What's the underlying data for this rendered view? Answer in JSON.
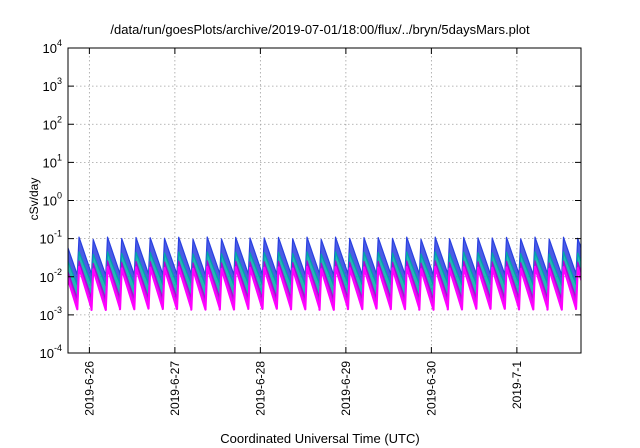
{
  "chart_data": {
    "type": "line",
    "title": "/data/run/goesPlots/archive/2019-07-01/18:00/flux/../bryn/5daysMars.plot",
    "xlabel": "Coordinated Universal Time (UTC)",
    "ylabel": "cSv/day",
    "y_scale": "log",
    "ylim": [
      0.0001,
      10000
    ],
    "y_ticks": [
      {
        "value": 0.0001,
        "base": "10",
        "exp": "-4"
      },
      {
        "value": 0.001,
        "base": "10",
        "exp": "-3"
      },
      {
        "value": 0.01,
        "base": "10",
        "exp": "-2"
      },
      {
        "value": 0.1,
        "base": "10",
        "exp": "-1"
      },
      {
        "value": 1,
        "base": "10",
        "exp": "0"
      },
      {
        "value": 10,
        "base": "10",
        "exp": "1"
      },
      {
        "value": 100,
        "base": "10",
        "exp": "2"
      },
      {
        "value": 1000,
        "base": "10",
        "exp": "3"
      },
      {
        "value": 10000,
        "base": "10",
        "exp": "4"
      }
    ],
    "x_range": [
      "2019-06-25T18:00",
      "2019-07-01T18:00"
    ],
    "x_ticks": [
      "2019-6-26",
      "2019-6-27",
      "2019-6-28",
      "2019-6-29",
      "2019-6-30",
      "2019-7-1"
    ],
    "x_tick_values": [
      "2019-06-26",
      "2019-06-27",
      "2019-06-28",
      "2019-06-29",
      "2019-06-30",
      "2019-07-01"
    ],
    "grid": true,
    "legend": "none",
    "oscillation": {
      "cycles_per_day": 6,
      "shape": "sawtooth (sharp rise, slow decay)"
    },
    "series": [
      {
        "color": "#ff00ff",
        "peak": 0.018,
        "trough": 0.0015
      },
      {
        "color": "#b000d8",
        "peak": 0.026,
        "trough": 0.0028
      },
      {
        "color": "#00a8a8",
        "peak": 0.045,
        "trough": 0.0065
      },
      {
        "color": "#2a40e0",
        "peak": 0.11,
        "trough": 0.012
      }
    ]
  }
}
